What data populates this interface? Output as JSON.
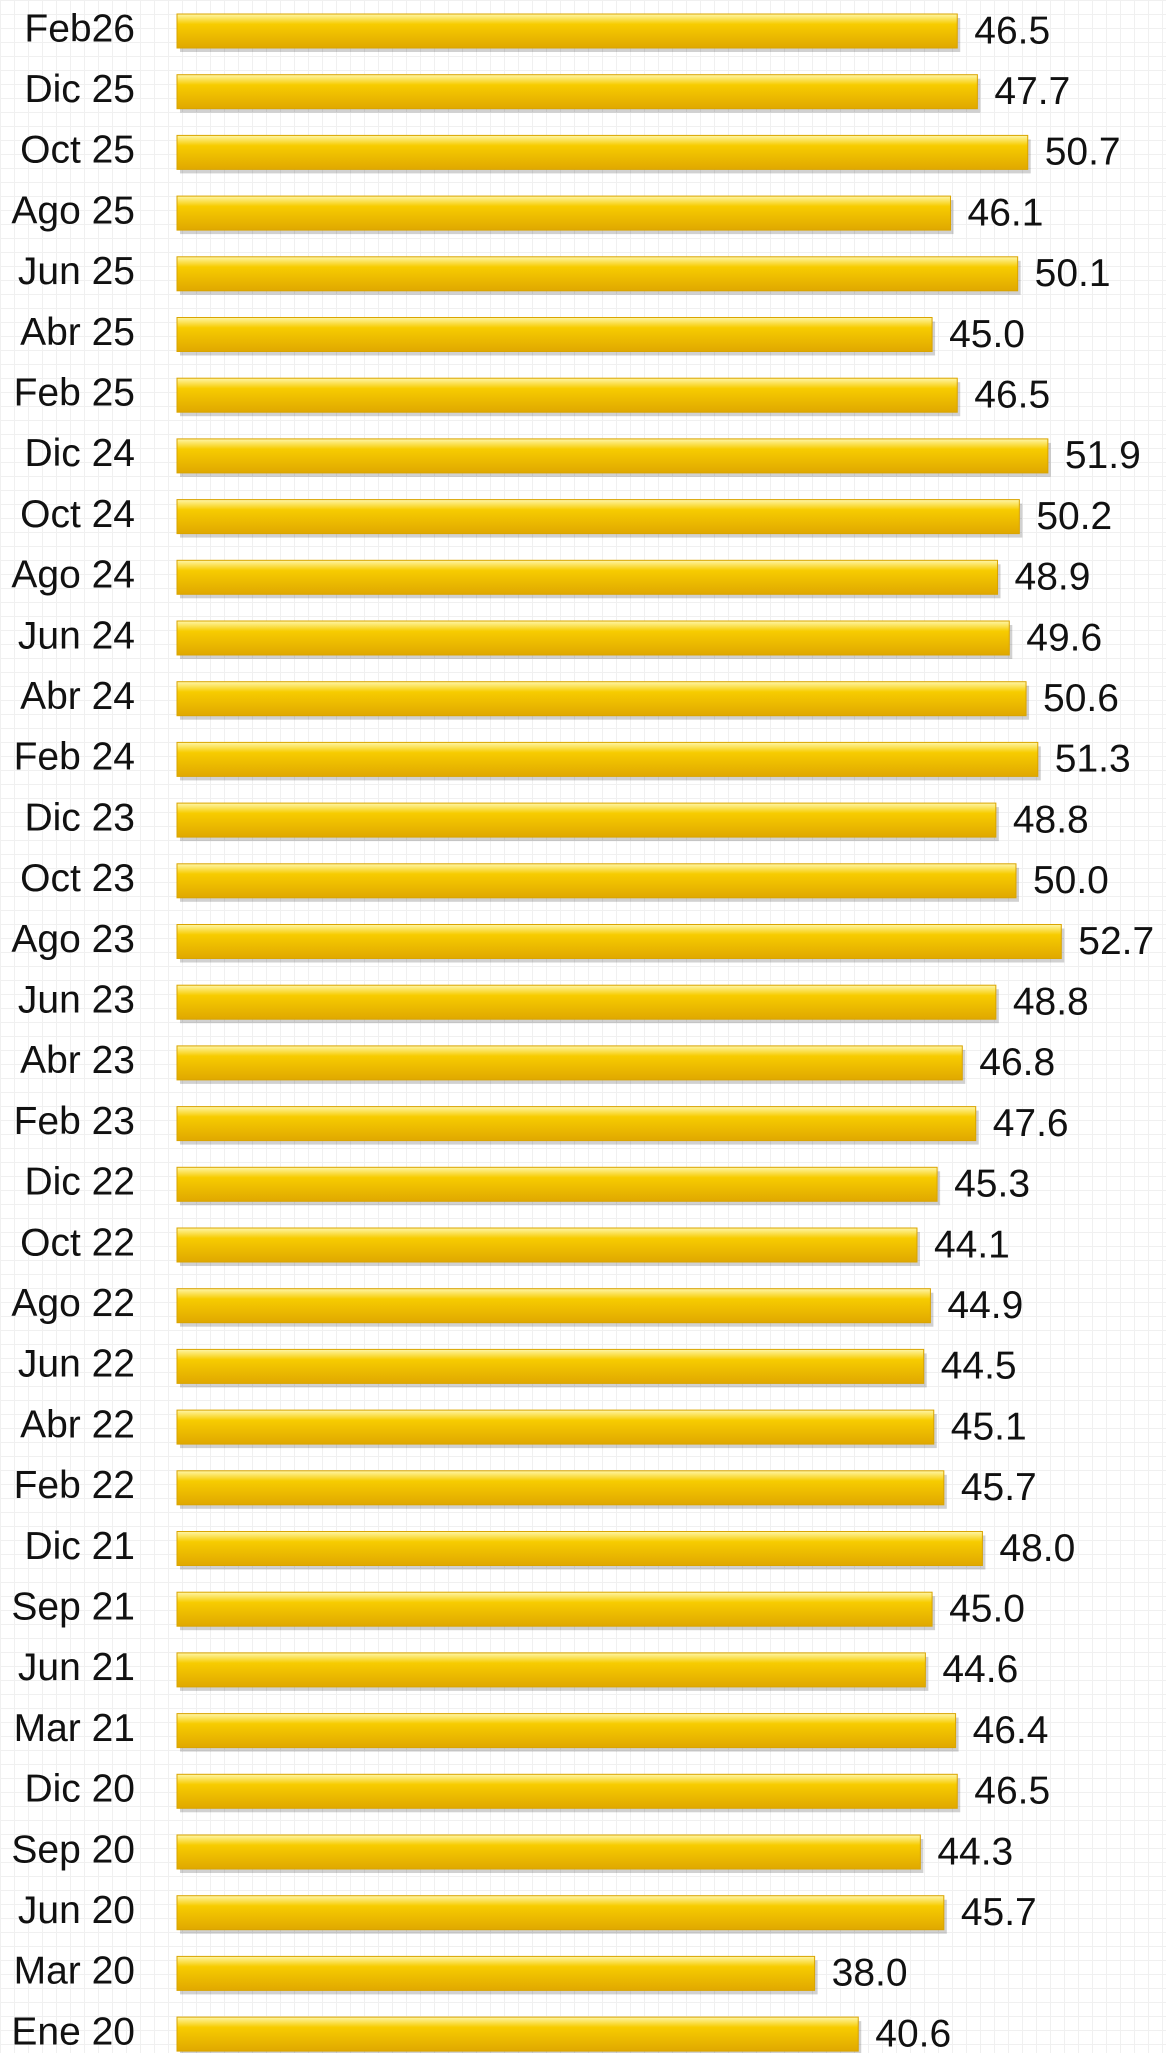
{
  "chart_data": {
    "type": "barh",
    "categories": [
      "Feb26",
      "Dic 25",
      "Oct 25",
      "Ago 25",
      "Jun 25",
      "Abr 25",
      "Feb 25",
      "Dic 24",
      "Oct 24",
      "Ago 24",
      "Jun 24",
      "Abr 24",
      "Feb 24",
      "Dic 23",
      "Oct 23",
      "Ago 23",
      "Jun 23",
      "Abr 23",
      "Feb 23",
      "Dic 22",
      "Oct 22",
      "Ago 22",
      "Jun 22",
      "Abr 22",
      "Feb 22",
      "Dic 21",
      "Sep 21",
      "Jun 21",
      "Mar 21",
      "Dic 20",
      "Sep 20",
      "Jun 20",
      "Mar 20",
      "Ene 20"
    ],
    "values": [
      46.5,
      47.7,
      50.7,
      46.1,
      50.1,
      45.0,
      46.5,
      51.9,
      50.2,
      48.9,
      49.6,
      50.6,
      51.3,
      48.8,
      50.0,
      52.7,
      48.8,
      46.8,
      47.6,
      45.3,
      44.1,
      44.9,
      44.5,
      45.1,
      45.7,
      48.0,
      45.0,
      44.6,
      46.4,
      46.5,
      44.3,
      45.7,
      38.0,
      40.6
    ],
    "value_labels": [
      "46.5",
      "47.7",
      "50.7",
      "46.1",
      "50.1",
      "45.0",
      "46.5",
      "51.9",
      "50.2",
      "48.9",
      "49.6",
      "50.6",
      "51.3",
      "48.8",
      "50.0",
      "52.7",
      "48.8",
      "46.8",
      "47.6",
      "45.3",
      "44.1",
      "44.9",
      "44.5",
      "45.1",
      "45.7",
      "48.0",
      "45.0",
      "44.6",
      "46.4",
      "46.5",
      "44.3",
      "45.7",
      "38.0",
      "40.6"
    ],
    "color": "#f7cc00",
    "xlim": [
      0,
      59
    ]
  }
}
